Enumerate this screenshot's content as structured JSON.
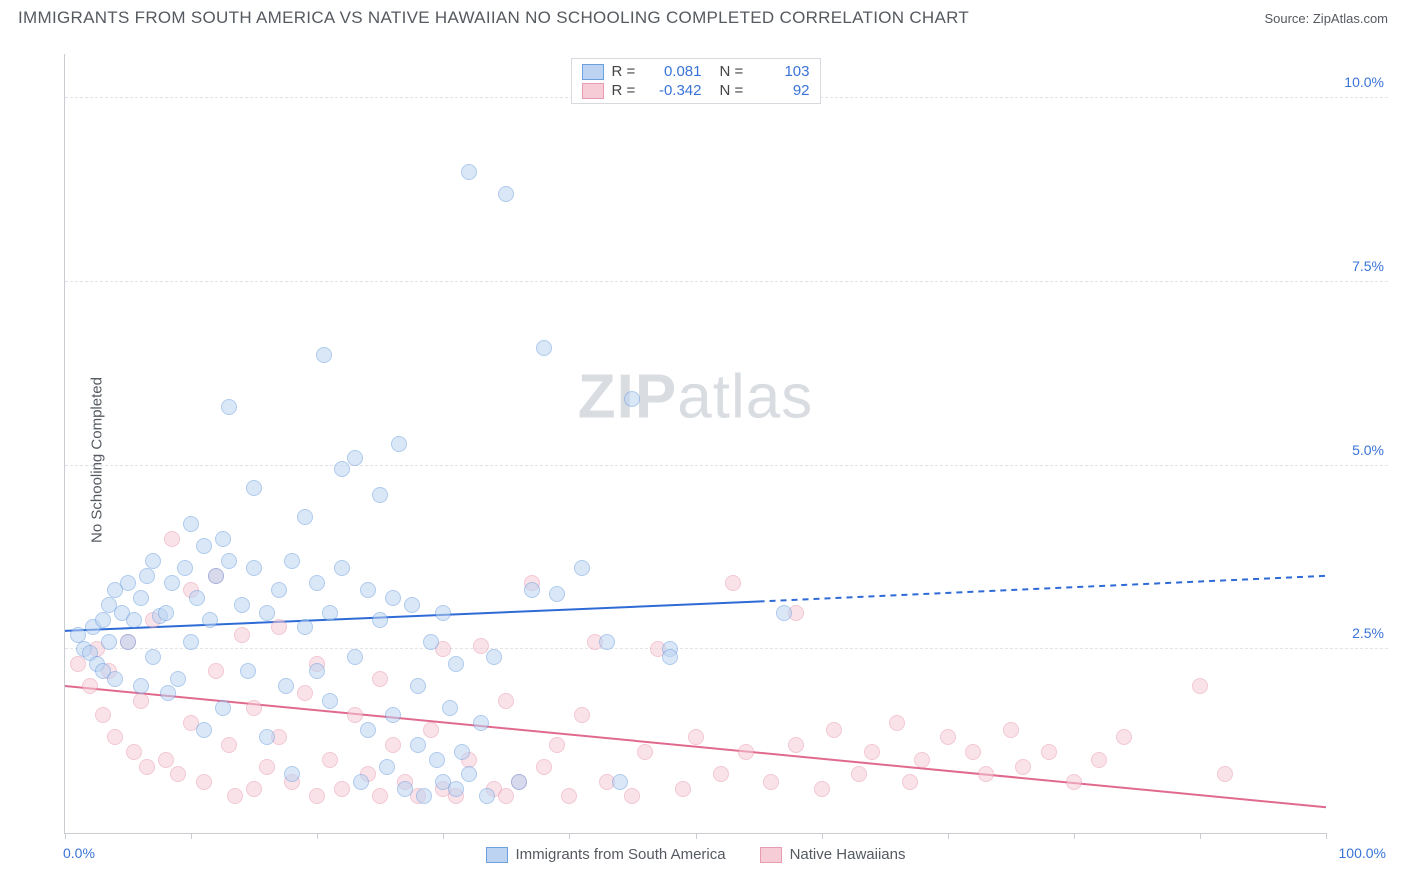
{
  "title": "IMMIGRANTS FROM SOUTH AMERICA VS NATIVE HAWAIIAN NO SCHOOLING COMPLETED CORRELATION CHART",
  "source": "Source: ZipAtlas.com",
  "y_axis_label": "No Schooling Completed",
  "watermark_a": "ZIP",
  "watermark_b": "atlas",
  "chart": {
    "type": "scatter",
    "background_color": "#ffffff",
    "grid_color": "#e2e4e7",
    "axis_color": "#c9ccd0",
    "tick_label_color": "#3a74d8",
    "xlim": [
      0,
      100
    ],
    "ylim": [
      0,
      10.6
    ],
    "x_ticks_major": [
      0,
      10,
      20,
      30,
      40,
      50,
      60,
      70,
      80,
      90,
      100
    ],
    "x_tick_labels": {
      "0": "0.0%",
      "100": "100.0%"
    },
    "y_ticks": [
      {
        "v": 2.5,
        "label": "2.5%"
      },
      {
        "v": 5.0,
        "label": "5.0%"
      },
      {
        "v": 7.5,
        "label": "7.5%"
      },
      {
        "v": 10.0,
        "label": "10.0%"
      }
    ],
    "marker_radius": 8,
    "marker_stroke_width": 1,
    "series_a": {
      "name": "Immigrants from South America",
      "fill": "#bcd4f2",
      "fill_opacity": 0.55,
      "stroke": "#6ea0e0",
      "line_color": "#2e6bd6",
      "line_width": 2,
      "R_label": "R =",
      "R": "0.081",
      "N_label": "N =",
      "N": "103",
      "trend": {
        "x0": 0,
        "y0": 2.75,
        "x1_solid": 55,
        "y1_solid": 3.15,
        "x1": 100,
        "y1": 3.5
      },
      "points": [
        [
          1.5,
          2.5
        ],
        [
          1,
          2.7
        ],
        [
          2,
          2.45
        ],
        [
          2.2,
          2.8
        ],
        [
          2.5,
          2.3
        ],
        [
          3,
          2.9
        ],
        [
          3,
          2.2
        ],
        [
          3.5,
          3.1
        ],
        [
          3.5,
          2.6
        ],
        [
          4,
          3.3
        ],
        [
          4,
          2.1
        ],
        [
          4.5,
          3.0
        ],
        [
          5,
          2.6
        ],
        [
          5,
          3.4
        ],
        [
          5.5,
          2.9
        ],
        [
          6,
          3.2
        ],
        [
          6,
          2.0
        ],
        [
          6.5,
          3.5
        ],
        [
          7,
          2.4
        ],
        [
          7,
          3.7
        ],
        [
          7.5,
          2.95
        ],
        [
          8,
          3.0
        ],
        [
          8.2,
          1.9
        ],
        [
          8.5,
          3.4
        ],
        [
          9,
          2.1
        ],
        [
          9.5,
          3.6
        ],
        [
          10,
          4.2
        ],
        [
          10,
          2.6
        ],
        [
          10.5,
          3.2
        ],
        [
          11,
          3.9
        ],
        [
          11,
          1.4
        ],
        [
          11.5,
          2.9
        ],
        [
          12,
          3.5
        ],
        [
          12.5,
          4.0
        ],
        [
          12.5,
          1.7
        ],
        [
          13,
          3.7
        ],
        [
          13,
          5.8
        ],
        [
          14,
          3.1
        ],
        [
          14.5,
          2.2
        ],
        [
          15,
          3.6
        ],
        [
          15,
          4.7
        ],
        [
          16,
          3.0
        ],
        [
          16,
          1.3
        ],
        [
          17,
          3.3
        ],
        [
          17.5,
          2.0
        ],
        [
          18,
          3.7
        ],
        [
          18,
          0.8
        ],
        [
          19,
          2.8
        ],
        [
          19,
          4.3
        ],
        [
          20,
          3.4
        ],
        [
          20,
          2.2
        ],
        [
          20.5,
          6.5
        ],
        [
          21,
          1.8
        ],
        [
          21,
          3.0
        ],
        [
          22,
          3.6
        ],
        [
          22,
          4.95
        ],
        [
          23,
          2.4
        ],
        [
          23,
          5.1
        ],
        [
          23.5,
          0.7
        ],
        [
          24,
          1.4
        ],
        [
          24,
          3.3
        ],
        [
          25,
          2.9
        ],
        [
          25,
          4.6
        ],
        [
          25.5,
          0.9
        ],
        [
          26,
          3.2
        ],
        [
          26,
          1.6
        ],
        [
          26.5,
          5.3
        ],
        [
          27,
          0.6
        ],
        [
          27.5,
          3.1
        ],
        [
          28,
          2.0
        ],
        [
          28,
          1.2
        ],
        [
          28.5,
          0.5
        ],
        [
          29,
          2.6
        ],
        [
          29.5,
          1.0
        ],
        [
          30,
          3.0
        ],
        [
          30,
          0.7
        ],
        [
          30.5,
          1.7
        ],
        [
          31,
          2.3
        ],
        [
          31,
          0.6
        ],
        [
          31.5,
          1.1
        ],
        [
          32,
          9.0
        ],
        [
          32,
          0.8
        ],
        [
          33,
          1.5
        ],
        [
          33.5,
          0.5
        ],
        [
          34,
          2.4
        ],
        [
          35,
          8.7
        ],
        [
          36,
          0.7
        ],
        [
          37,
          3.3
        ],
        [
          38,
          6.6
        ],
        [
          39,
          3.25
        ],
        [
          41,
          3.6
        ],
        [
          43,
          2.6
        ],
        [
          44,
          0.7
        ],
        [
          45,
          5.9
        ],
        [
          48,
          2.5
        ],
        [
          48,
          2.4
        ],
        [
          57,
          3.0
        ]
      ]
    },
    "series_b": {
      "name": "Native Hawaiians",
      "fill": "#f6cdd7",
      "fill_opacity": 0.55,
      "stroke": "#e89ab0",
      "line_color": "#e06a8e",
      "line_width": 2,
      "R_label": "R =",
      "R": "-0.342",
      "N_label": "N =",
      "N": "92",
      "trend": {
        "x0": 0,
        "y0": 2.0,
        "x1_solid": 100,
        "y1_solid": 0.35,
        "x1": 100,
        "y1": 0.35
      },
      "points": [
        [
          1,
          2.3
        ],
        [
          2,
          2.0
        ],
        [
          2.5,
          2.5
        ],
        [
          3,
          1.6
        ],
        [
          3.5,
          2.2
        ],
        [
          4,
          1.3
        ],
        [
          5,
          2.6
        ],
        [
          5.5,
          1.1
        ],
        [
          6,
          1.8
        ],
        [
          6.5,
          0.9
        ],
        [
          7,
          2.9
        ],
        [
          8,
          1.0
        ],
        [
          8.5,
          4.0
        ],
        [
          9,
          0.8
        ],
        [
          10,
          1.5
        ],
        [
          10,
          3.3
        ],
        [
          11,
          0.7
        ],
        [
          12,
          2.2
        ],
        [
          12,
          3.5
        ],
        [
          13,
          1.2
        ],
        [
          13.5,
          0.5
        ],
        [
          14,
          2.7
        ],
        [
          15,
          1.7
        ],
        [
          15,
          0.6
        ],
        [
          16,
          0.9
        ],
        [
          17,
          2.8
        ],
        [
          17,
          1.3
        ],
        [
          18,
          0.7
        ],
        [
          19,
          1.9
        ],
        [
          20,
          0.5
        ],
        [
          20,
          2.3
        ],
        [
          21,
          1.0
        ],
        [
          22,
          0.6
        ],
        [
          23,
          1.6
        ],
        [
          24,
          0.8
        ],
        [
          25,
          2.1
        ],
        [
          25,
          0.5
        ],
        [
          26,
          1.2
        ],
        [
          27,
          0.7
        ],
        [
          28,
          0.5
        ],
        [
          29,
          1.4
        ],
        [
          30,
          0.6
        ],
        [
          30,
          2.5
        ],
        [
          31,
          0.5
        ],
        [
          32,
          1.0
        ],
        [
          33,
          2.55
        ],
        [
          34,
          0.6
        ],
        [
          35,
          1.8
        ],
        [
          35,
          0.5
        ],
        [
          36,
          0.7
        ],
        [
          37,
          3.4
        ],
        [
          38,
          0.9
        ],
        [
          39,
          1.2
        ],
        [
          40,
          0.5
        ],
        [
          41,
          1.6
        ],
        [
          42,
          2.6
        ],
        [
          43,
          0.7
        ],
        [
          45,
          0.5
        ],
        [
          46,
          1.1
        ],
        [
          47,
          2.5
        ],
        [
          49,
          0.6
        ],
        [
          50,
          1.3
        ],
        [
          52,
          0.8
        ],
        [
          53,
          3.4
        ],
        [
          54,
          1.1
        ],
        [
          56,
          0.7
        ],
        [
          58,
          1.2
        ],
        [
          58,
          3.0
        ],
        [
          60,
          0.6
        ],
        [
          61,
          1.4
        ],
        [
          63,
          0.8
        ],
        [
          64,
          1.1
        ],
        [
          66,
          1.5
        ],
        [
          67,
          0.7
        ],
        [
          68,
          1.0
        ],
        [
          70,
          1.3
        ],
        [
          72,
          1.1
        ],
        [
          73,
          0.8
        ],
        [
          75,
          1.4
        ],
        [
          76,
          0.9
        ],
        [
          78,
          1.1
        ],
        [
          80,
          0.7
        ],
        [
          82,
          1.0
        ],
        [
          84,
          1.3
        ],
        [
          90,
          2.0
        ],
        [
          92,
          0.8
        ]
      ]
    }
  },
  "legend_bottom": {
    "a": "Immigrants from South America",
    "b": "Native Hawaiians"
  }
}
